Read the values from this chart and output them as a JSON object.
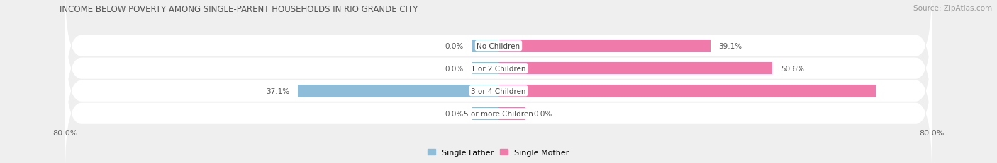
{
  "title": "INCOME BELOW POVERTY AMONG SINGLE-PARENT HOUSEHOLDS IN RIO GRANDE CITY",
  "source": "Source: ZipAtlas.com",
  "categories": [
    "No Children",
    "1 or 2 Children",
    "3 or 4 Children",
    "5 or more Children"
  ],
  "single_father": [
    0.0,
    0.0,
    37.1,
    0.0
  ],
  "single_mother": [
    39.1,
    50.6,
    69.6,
    0.0
  ],
  "father_color": "#8dbdd8",
  "mother_color": "#f07aaa",
  "father_label": "Single Father",
  "mother_label": "Single Mother",
  "axis_min": -80.0,
  "axis_max": 80.0,
  "bg_color": "#efefef",
  "row_bg_color": "#ffffff",
  "title_fontsize": 8.5,
  "source_fontsize": 7.5,
  "value_fontsize": 7.5,
  "cat_fontsize": 7.5,
  "tick_fontsize": 8,
  "legend_fontsize": 8,
  "bar_height": 0.55,
  "stub_size": 5.0
}
